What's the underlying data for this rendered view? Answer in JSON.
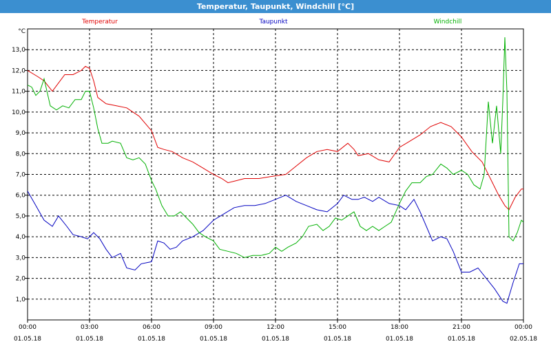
{
  "window": {
    "title": "Temperatur, Taupunkt, Windchill [°C]"
  },
  "chart_data": {
    "type": "line",
    "title": "Temperatur, Taupunkt, Windchill [°C]",
    "ylabel": "°C",
    "ylim": [
      0.0,
      14.0
    ],
    "xlim": [
      0,
      24
    ],
    "grid": true,
    "legend": "top",
    "y_ticks": [
      1.0,
      2.0,
      3.0,
      4.0,
      5.0,
      6.0,
      7.0,
      8.0,
      9.0,
      10.0,
      11.0,
      12.0,
      13.0
    ],
    "y_tick_labels": [
      "1,0",
      "2,0",
      "3,0",
      "4,0",
      "5,0",
      "6,0",
      "7,0",
      "8,0",
      "9,0",
      "10,0",
      "11,0",
      "12,0",
      "13,0"
    ],
    "x_ticks": [
      0,
      3,
      6,
      9,
      12,
      15,
      18,
      21,
      24
    ],
    "x_tick_labels": [
      {
        "time": "00:00",
        "date": "01.05.18"
      },
      {
        "time": "03:00",
        "date": "01.05.18"
      },
      {
        "time": "06:00",
        "date": "01.05.18"
      },
      {
        "time": "09:00",
        "date": "01.05.18"
      },
      {
        "time": "12:00",
        "date": "01.05.18"
      },
      {
        "time": "15:00",
        "date": "01.05.18"
      },
      {
        "time": "18:00",
        "date": "01.05.18"
      },
      {
        "time": "21:00",
        "date": "01.05.18"
      },
      {
        "time": "00:00",
        "date": "02.05.18"
      }
    ],
    "series": [
      {
        "name": "Temperatur",
        "color": "#e00000",
        "points": [
          [
            0,
            12.0
          ],
          [
            0.5,
            11.7
          ],
          [
            0.8,
            11.5
          ],
          [
            1.2,
            11.0
          ],
          [
            1.5,
            11.4
          ],
          [
            1.8,
            11.8
          ],
          [
            2.2,
            11.8
          ],
          [
            2.6,
            12.0
          ],
          [
            2.8,
            12.2
          ],
          [
            3.0,
            12.1
          ],
          [
            3.2,
            11.5
          ],
          [
            3.4,
            10.7
          ],
          [
            3.8,
            10.4
          ],
          [
            4.3,
            10.3
          ],
          [
            4.8,
            10.2
          ],
          [
            5.4,
            9.8
          ],
          [
            6.0,
            9.1
          ],
          [
            6.3,
            8.3
          ],
          [
            6.6,
            8.2
          ],
          [
            7.0,
            8.1
          ],
          [
            7.5,
            7.8
          ],
          [
            8.0,
            7.6
          ],
          [
            8.5,
            7.3
          ],
          [
            9.0,
            7.0
          ],
          [
            9.4,
            6.8
          ],
          [
            9.7,
            6.6
          ],
          [
            10.1,
            6.7
          ],
          [
            10.5,
            6.8
          ],
          [
            11.2,
            6.8
          ],
          [
            11.8,
            6.9
          ],
          [
            12.5,
            7.0
          ],
          [
            13.0,
            7.4
          ],
          [
            13.5,
            7.8
          ],
          [
            14.0,
            8.1
          ],
          [
            14.5,
            8.2
          ],
          [
            15.0,
            8.1
          ],
          [
            15.5,
            8.5
          ],
          [
            15.8,
            8.2
          ],
          [
            16.0,
            7.9
          ],
          [
            16.5,
            8.0
          ],
          [
            17.0,
            7.7
          ],
          [
            17.5,
            7.6
          ],
          [
            18.0,
            8.3
          ],
          [
            18.5,
            8.6
          ],
          [
            19.0,
            8.9
          ],
          [
            19.5,
            9.3
          ],
          [
            20.0,
            9.5
          ],
          [
            20.5,
            9.3
          ],
          [
            21.0,
            8.8
          ],
          [
            21.5,
            8.1
          ],
          [
            22.0,
            7.6
          ],
          [
            22.5,
            6.6
          ],
          [
            22.8,
            6.0
          ],
          [
            23.1,
            5.5
          ],
          [
            23.3,
            5.3
          ],
          [
            23.6,
            5.9
          ],
          [
            23.9,
            6.3
          ],
          [
            24.0,
            6.3
          ]
        ]
      },
      {
        "name": "Taupunkt",
        "color": "#0000c0",
        "points": [
          [
            0,
            6.2
          ],
          [
            0.4,
            5.5
          ],
          [
            0.8,
            4.8
          ],
          [
            1.2,
            4.5
          ],
          [
            1.5,
            5.0
          ],
          [
            1.9,
            4.5
          ],
          [
            2.2,
            4.1
          ],
          [
            2.6,
            4.0
          ],
          [
            2.9,
            3.9
          ],
          [
            3.2,
            4.2
          ],
          [
            3.5,
            3.9
          ],
          [
            3.8,
            3.4
          ],
          [
            4.1,
            3.0
          ],
          [
            4.5,
            3.2
          ],
          [
            4.8,
            2.5
          ],
          [
            5.2,
            2.4
          ],
          [
            5.5,
            2.7
          ],
          [
            6.0,
            2.8
          ],
          [
            6.3,
            3.8
          ],
          [
            6.6,
            3.7
          ],
          [
            6.9,
            3.4
          ],
          [
            7.2,
            3.5
          ],
          [
            7.5,
            3.8
          ],
          [
            8.0,
            4.0
          ],
          [
            8.5,
            4.3
          ],
          [
            9.0,
            4.8
          ],
          [
            9.5,
            5.1
          ],
          [
            10.0,
            5.4
          ],
          [
            10.5,
            5.5
          ],
          [
            11.0,
            5.5
          ],
          [
            11.5,
            5.6
          ],
          [
            12.0,
            5.8
          ],
          [
            12.5,
            6.0
          ],
          [
            13.0,
            5.7
          ],
          [
            13.5,
            5.5
          ],
          [
            14.0,
            5.3
          ],
          [
            14.5,
            5.2
          ],
          [
            15.0,
            5.6
          ],
          [
            15.3,
            6.0
          ],
          [
            15.7,
            5.8
          ],
          [
            16.0,
            5.8
          ],
          [
            16.3,
            5.9
          ],
          [
            16.7,
            5.7
          ],
          [
            17.0,
            5.9
          ],
          [
            17.5,
            5.6
          ],
          [
            18.0,
            5.5
          ],
          [
            18.3,
            5.3
          ],
          [
            18.7,
            5.8
          ],
          [
            19.0,
            5.2
          ],
          [
            19.3,
            4.5
          ],
          [
            19.6,
            3.8
          ],
          [
            20.0,
            4.0
          ],
          [
            20.3,
            3.9
          ],
          [
            20.6,
            3.3
          ],
          [
            21.0,
            2.3
          ],
          [
            21.4,
            2.3
          ],
          [
            21.8,
            2.5
          ],
          [
            22.2,
            2.0
          ],
          [
            22.6,
            1.5
          ],
          [
            23.0,
            0.9
          ],
          [
            23.2,
            0.8
          ],
          [
            23.5,
            1.8
          ],
          [
            23.8,
            2.7
          ],
          [
            24.0,
            2.7
          ]
        ]
      },
      {
        "name": "Windchill",
        "color": "#00b000",
        "points": [
          [
            0,
            11.3
          ],
          [
            0.2,
            11.2
          ],
          [
            0.4,
            10.8
          ],
          [
            0.6,
            11.0
          ],
          [
            0.8,
            11.6
          ],
          [
            1.1,
            10.3
          ],
          [
            1.4,
            10.1
          ],
          [
            1.7,
            10.3
          ],
          [
            2.0,
            10.2
          ],
          [
            2.3,
            10.6
          ],
          [
            2.6,
            10.6
          ],
          [
            2.8,
            11.0
          ],
          [
            3.0,
            11.0
          ],
          [
            3.2,
            10.2
          ],
          [
            3.4,
            9.2
          ],
          [
            3.6,
            8.5
          ],
          [
            3.9,
            8.5
          ],
          [
            4.1,
            8.6
          ],
          [
            4.5,
            8.5
          ],
          [
            4.8,
            7.8
          ],
          [
            5.1,
            7.7
          ],
          [
            5.4,
            7.8
          ],
          [
            5.7,
            7.5
          ],
          [
            6.0,
            6.7
          ],
          [
            6.2,
            6.3
          ],
          [
            6.5,
            5.5
          ],
          [
            6.8,
            5.0
          ],
          [
            7.1,
            5.0
          ],
          [
            7.4,
            5.2
          ],
          [
            7.7,
            4.9
          ],
          [
            8.0,
            4.6
          ],
          [
            8.3,
            4.2
          ],
          [
            8.6,
            4.0
          ],
          [
            9.0,
            3.8
          ],
          [
            9.3,
            3.4
          ],
          [
            9.7,
            3.3
          ],
          [
            10.1,
            3.2
          ],
          [
            10.5,
            3.0
          ],
          [
            10.9,
            3.1
          ],
          [
            11.3,
            3.1
          ],
          [
            11.7,
            3.2
          ],
          [
            12.0,
            3.5
          ],
          [
            12.3,
            3.3
          ],
          [
            12.6,
            3.5
          ],
          [
            13.0,
            3.7
          ],
          [
            13.3,
            4.0
          ],
          [
            13.6,
            4.5
          ],
          [
            14.0,
            4.6
          ],
          [
            14.3,
            4.3
          ],
          [
            14.6,
            4.5
          ],
          [
            14.9,
            4.9
          ],
          [
            15.2,
            4.8
          ],
          [
            15.5,
            5.0
          ],
          [
            15.8,
            5.2
          ],
          [
            16.1,
            4.5
          ],
          [
            16.4,
            4.3
          ],
          [
            16.7,
            4.5
          ],
          [
            17.0,
            4.3
          ],
          [
            17.3,
            4.5
          ],
          [
            17.6,
            4.7
          ],
          [
            18.0,
            5.6
          ],
          [
            18.3,
            6.2
          ],
          [
            18.6,
            6.6
          ],
          [
            19.0,
            6.6
          ],
          [
            19.3,
            6.9
          ],
          [
            19.6,
            7.0
          ],
          [
            20.0,
            7.5
          ],
          [
            20.3,
            7.3
          ],
          [
            20.6,
            7.0
          ],
          [
            21.0,
            7.2
          ],
          [
            21.3,
            7.0
          ],
          [
            21.6,
            6.5
          ],
          [
            21.9,
            6.3
          ],
          [
            22.1,
            7.0
          ],
          [
            22.3,
            10.5
          ],
          [
            22.5,
            8.5
          ],
          [
            22.7,
            10.3
          ],
          [
            22.9,
            8.0
          ],
          [
            23.0,
            10.5
          ],
          [
            23.1,
            13.6
          ],
          [
            23.2,
            11.0
          ],
          [
            23.3,
            4.0
          ],
          [
            23.5,
            3.8
          ],
          [
            23.7,
            4.2
          ],
          [
            23.9,
            4.8
          ],
          [
            24.0,
            4.7
          ]
        ]
      }
    ]
  }
}
